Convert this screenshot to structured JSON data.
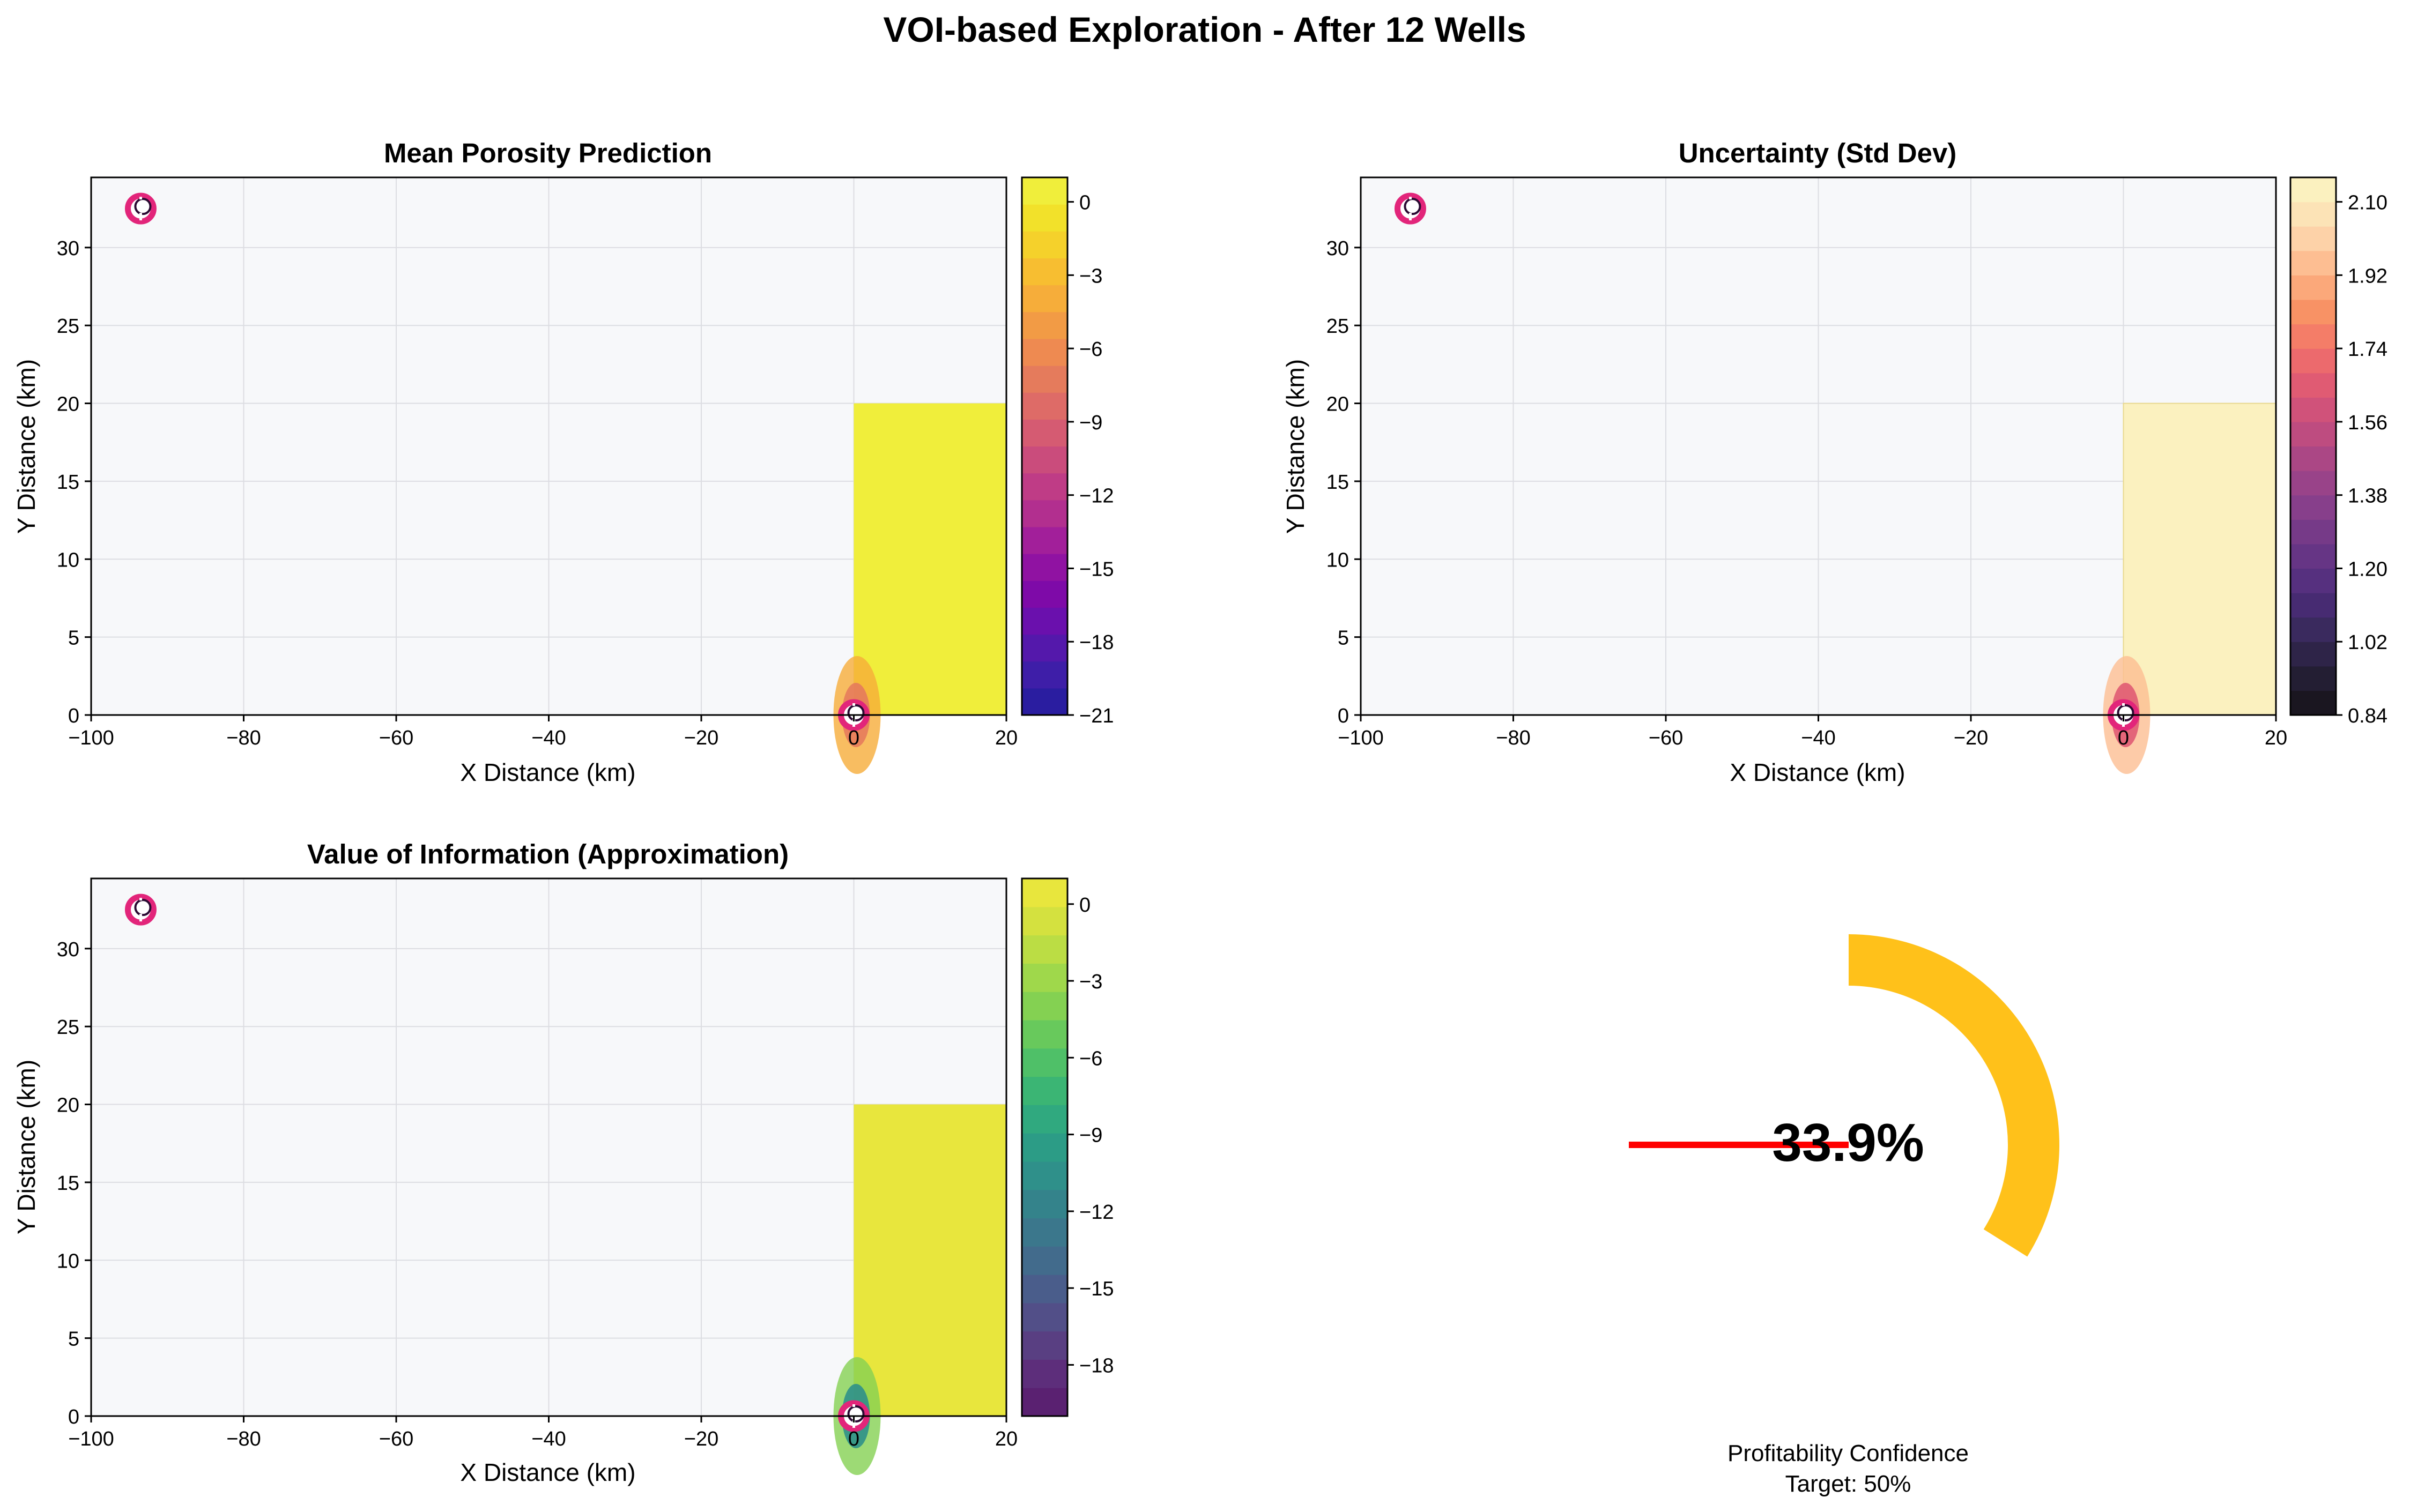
{
  "figure": {
    "title": "VOI-based Exploration - After 12 Wells"
  },
  "colors": {
    "panel_bg": "#f7f8fa",
    "grid": "#dcdde2",
    "field_mean": "#f0ee3b",
    "field_std": "#fbf1bf",
    "field_voi": "#e8e63d",
    "gauge_arc": "#ffc11a",
    "gauge_needle": "#ff0000",
    "well_ring": "#e2257a"
  },
  "chart_data": [
    {
      "type": "heatmap",
      "title": "Mean Porosity Prediction",
      "xlabel": "X Distance (km)",
      "ylabel": "Y Distance (km)",
      "xlim": [
        -100,
        20
      ],
      "ylim": [
        0,
        34.5
      ],
      "xticks": [
        -100,
        -80,
        -60,
        -40,
        -20,
        0,
        20
      ],
      "yticks": [
        0,
        5,
        10,
        15,
        20,
        25,
        30
      ],
      "grid": true,
      "data_region": {
        "x": [
          0,
          20
        ],
        "y": [
          0,
          20
        ],
        "value": 0
      },
      "wells": [
        {
          "x": -93.5,
          "y": 32.5
        },
        {
          "x": 0,
          "y": 0
        }
      ],
      "colorbar": {
        "colormap": "plasma",
        "range": [
          -21,
          1
        ],
        "ticks": [
          0,
          -3,
          -6,
          -9,
          -12,
          -15,
          -18,
          -21
        ],
        "colors": [
          "#2a1da0",
          "#3e1ea8",
          "#5418ab",
          "#6a10ad",
          "#7e0aa8",
          "#9012a2",
          "#a21f9a",
          "#b22f8f",
          "#bf3c86",
          "#ca4c7c",
          "#d55b72",
          "#de6b67",
          "#e57b5c",
          "#ee8a51",
          "#f29b45",
          "#f6ad3a",
          "#f7be31",
          "#f5d12b",
          "#f2e12a",
          "#f0ee3b"
        ]
      }
    },
    {
      "type": "heatmap",
      "title": "Uncertainty (Std Dev)",
      "xlabel": "X Distance (km)",
      "ylabel": "Y Distance (km)",
      "xlim": [
        -100,
        20
      ],
      "ylim": [
        0,
        34.5
      ],
      "xticks": [
        -100,
        -80,
        -60,
        -40,
        -20,
        0,
        20
      ],
      "yticks": [
        0,
        5,
        10,
        15,
        20,
        25,
        30
      ],
      "grid": true,
      "data_region": {
        "x": [
          0,
          20
        ],
        "y": [
          0,
          20
        ],
        "value": 2.14
      },
      "wells": [
        {
          "x": -93.5,
          "y": 32.5
        },
        {
          "x": 0,
          "y": 0
        }
      ],
      "colorbar": {
        "colormap": "magma",
        "range": [
          0.84,
          2.16
        ],
        "ticks": [
          2.1,
          1.92,
          1.74,
          1.56,
          1.38,
          1.2,
          1.02,
          0.84
        ],
        "tick_labels": [
          "2.10",
          "1.92",
          "1.74",
          "1.56",
          "1.38",
          "1.20",
          "1.02",
          "0.84"
        ],
        "colors": [
          "#1a1620",
          "#231e33",
          "#2e2448",
          "#3a2a5e",
          "#472b72",
          "#56307f",
          "#663585",
          "#763a88",
          "#873f8b",
          "#994389",
          "#ab4785",
          "#be4c80",
          "#d0527a",
          "#e05b73",
          "#ec6a6d",
          "#f47d68",
          "#f89265",
          "#fba87a",
          "#fdbe92",
          "#fdd2a8",
          "#fce3b6",
          "#fbf1bf"
        ]
      }
    },
    {
      "type": "heatmap",
      "title": "Value of Information (Approximation)",
      "xlabel": "X Distance (km)",
      "ylabel": "Y Distance (km)",
      "xlim": [
        -100,
        20
      ],
      "ylim": [
        0,
        34.5
      ],
      "xticks": [
        -100,
        -80,
        -60,
        -40,
        -20,
        0,
        20
      ],
      "yticks": [
        0,
        5,
        10,
        15,
        20,
        25,
        30
      ],
      "grid": true,
      "data_region": {
        "x": [
          0,
          20
        ],
        "y": [
          0,
          20
        ],
        "value": 0
      },
      "wells": [
        {
          "x": -93.5,
          "y": 32.5
        },
        {
          "x": 0,
          "y": 0
        }
      ],
      "colorbar": {
        "colormap": "viridis",
        "range": [
          -20,
          1
        ],
        "ticks": [
          0,
          -3,
          -6,
          -9,
          -12,
          -15,
          -18
        ],
        "colors": [
          "#5a2171",
          "#5d2e7b",
          "#593f82",
          "#524f88",
          "#4a5d8b",
          "#426b8c",
          "#3b778c",
          "#34838b",
          "#2f908a",
          "#2c9c86",
          "#30a97f",
          "#3bb574",
          "#4fc068",
          "#68c95c",
          "#84d152",
          "#9fd84b",
          "#bbdd44",
          "#d4e13f",
          "#e8e63d"
        ]
      }
    }
  ],
  "gauge": {
    "value_pct": 33.9,
    "value_text": "33.9%",
    "label_line1": "Profitability Confidence",
    "label_line2": "Target: 50%"
  }
}
